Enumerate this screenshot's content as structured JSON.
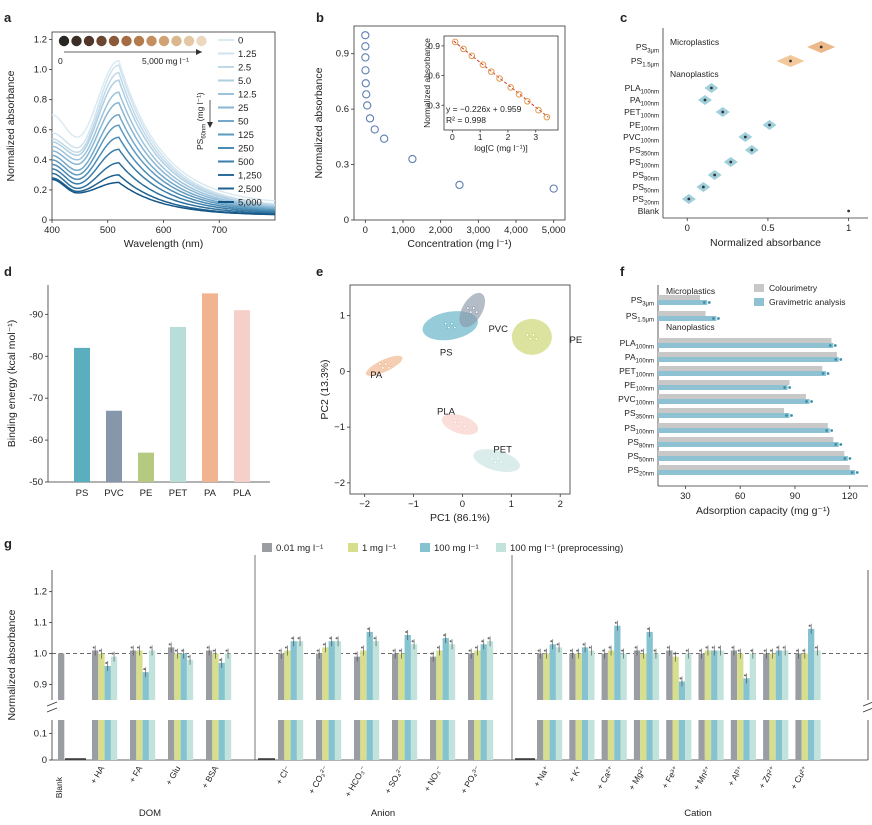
{
  "panels": {
    "a": "a",
    "b": "b",
    "c": "c",
    "d": "d",
    "e": "e",
    "f": "f",
    "g": "g"
  },
  "chart_data": [
    {
      "id": "a",
      "type": "line",
      "xlabel": "Wavelength (nm)",
      "ylabel": "Normalized absorbance",
      "xlim": [
        400,
        800
      ],
      "ylim": [
        0,
        1.25
      ],
      "xticks": [
        400,
        500,
        600,
        700
      ],
      "yticks": [
        0,
        0.2,
        0.4,
        0.6,
        0.8,
        1.0,
        1.2
      ],
      "inset_label_left": "0",
      "inset_label_right": "5,000 mg l⁻¹",
      "legend_axis_label": "PS60nm (mg l⁻¹)",
      "legend_ps": "PS",
      "legend_sub": "60nm",
      "legend_unit": "(mg l⁻¹)",
      "series": [
        {
          "name": "0",
          "peak": 1.06,
          "trough": 0.55,
          "high": 0.7,
          "low": 0.1
        },
        {
          "name": "1.25",
          "peak": 1.03,
          "trough": 0.48,
          "high": 0.58,
          "low": 0.08
        },
        {
          "name": "2.5",
          "peak": 0.98,
          "trough": 0.45,
          "high": 0.54,
          "low": 0.075
        },
        {
          "name": "5.0",
          "peak": 0.93,
          "trough": 0.43,
          "high": 0.52,
          "low": 0.07
        },
        {
          "name": "12.5",
          "peak": 0.85,
          "trough": 0.4,
          "high": 0.49,
          "low": 0.065
        },
        {
          "name": "25",
          "peak": 0.78,
          "trough": 0.37,
          "high": 0.46,
          "low": 0.06
        },
        {
          "name": "50",
          "peak": 0.7,
          "trough": 0.33,
          "high": 0.43,
          "low": 0.055
        },
        {
          "name": "125",
          "peak": 0.63,
          "trough": 0.3,
          "high": 0.4,
          "low": 0.05
        },
        {
          "name": "250",
          "peak": 0.55,
          "trough": 0.27,
          "high": 0.37,
          "low": 0.045
        },
        {
          "name": "500",
          "peak": 0.47,
          "trough": 0.24,
          "high": 0.34,
          "low": 0.04
        },
        {
          "name": "1,250",
          "peak": 0.38,
          "trough": 0.21,
          "high": 0.31,
          "low": 0.035
        },
        {
          "name": "2,500",
          "peak": 0.3,
          "trough": 0.19,
          "high": 0.28,
          "low": 0.03
        },
        {
          "name": "5,000",
          "peak": 0.25,
          "trough": 0.18,
          "high": 0.27,
          "low": 0.03
        }
      ],
      "series_colors": [
        "#dbeaf2",
        "#cfe3ee",
        "#c0d9e9",
        "#afcfe3",
        "#9cc3dc",
        "#88b6d3",
        "#73a8ca",
        "#5d9abf",
        "#4a8bb3",
        "#3a7da8",
        "#2c6f9c",
        "#1f6291",
        "#155686"
      ],
      "swatch_colors": [
        "#2a2622",
        "#3b2e26",
        "#51372a",
        "#6b4630",
        "#8a5a39",
        "#a46c42",
        "#b47c4c",
        "#c48f5e",
        "#d0a274",
        "#dbb78d",
        "#e4c8a6",
        "#ecd8bf"
      ]
    },
    {
      "id": "b",
      "type": "scatter",
      "xlabel": "Concentration (mg l⁻¹)",
      "ylabel": "Normalized absorbance",
      "xlim": [
        -300,
        5300
      ],
      "ylim": [
        0,
        1.05
      ],
      "xticks": [
        0,
        1000,
        2000,
        3000,
        4000,
        5000
      ],
      "yticks": [
        0,
        0.3,
        0.6,
        0.9
      ],
      "x": [
        0,
        1.25,
        2.5,
        5,
        12.5,
        25,
        50,
        125,
        250,
        500,
        1250,
        2500,
        5000
      ],
      "y": [
        1.0,
        0.94,
        0.88,
        0.81,
        0.74,
        0.68,
        0.62,
        0.55,
        0.49,
        0.44,
        0.33,
        0.19,
        0.17
      ],
      "inset": {
        "xlabel": "log[C (mg l⁻¹)]",
        "ylabel": "Normalized absorbance",
        "xlim": [
          -0.3,
          3.8
        ],
        "ylim": [
          0.05,
          1.0
        ],
        "xticks": [
          0,
          1,
          2,
          3
        ],
        "yticks": [
          0.3,
          0.6,
          0.9
        ],
        "equation": "y = −0.226x + 0.959",
        "r2": "R² = 0.998",
        "x": [
          0.1,
          0.4,
          0.7,
          1.1,
          1.4,
          1.7,
          2.1,
          2.4,
          2.7,
          3.1,
          3.4
        ],
        "y": [
          0.94,
          0.87,
          0.8,
          0.71,
          0.64,
          0.57,
          0.48,
          0.41,
          0.34,
          0.25,
          0.18
        ]
      }
    },
    {
      "id": "c",
      "type": "scatter",
      "xlabel": "Normalized absorbance",
      "xlim": [
        -0.15,
        1.12
      ],
      "xticks": [
        0,
        0.5,
        1.0
      ],
      "group_micro": "Microplastics",
      "group_nano": "Nanoplastics",
      "rows": [
        {
          "label": "PS",
          "sub": "3μm",
          "value": 0.83
        },
        {
          "label": "PS",
          "sub": "1.5μm",
          "value": 0.64
        },
        {
          "label": "PLA",
          "sub": "100nm",
          "value": 0.15
        },
        {
          "label": "PA",
          "sub": "100nm",
          "value": 0.11
        },
        {
          "label": "PET",
          "sub": "100nm",
          "value": 0.22
        },
        {
          "label": "PE",
          "sub": "100nm",
          "value": 0.51
        },
        {
          "label": "PVC",
          "sub": "100nm",
          "value": 0.36
        },
        {
          "label": "PS",
          "sub": "350nm",
          "value": 0.4
        },
        {
          "label": "PS",
          "sub": "100nm",
          "value": 0.27
        },
        {
          "label": "PS",
          "sub": "80nm",
          "value": 0.17
        },
        {
          "label": "PS",
          "sub": "50nm",
          "value": 0.1
        },
        {
          "label": "PS",
          "sub": "20nm",
          "value": 0.01
        },
        {
          "label": "Blank",
          "sub": "",
          "value": 1.0
        }
      ]
    },
    {
      "id": "d",
      "type": "bar",
      "ylabel": "Binding energy (kcal mol⁻¹)",
      "ylim": [
        -50,
        -97
      ],
      "yticks": [
        -50,
        -60,
        -70,
        -80,
        -90
      ],
      "categories": [
        "PS",
        "PVC",
        "PE",
        "PET",
        "PA",
        "PLA"
      ],
      "values": [
        -82,
        -67,
        -57,
        -87,
        -95,
        -91
      ],
      "colors": [
        "#5aaebe",
        "#8696ab",
        "#b5c980",
        "#b9ddd9",
        "#f0b590",
        "#f6d0c8"
      ]
    },
    {
      "id": "e",
      "type": "scatter",
      "xlabel": "PC1 (86.1%)",
      "ylabel": "PC2 (13.3%)",
      "xlim": [
        -2.3,
        2.2
      ],
      "ylim": [
        -2.2,
        1.55
      ],
      "xticks": [
        -2,
        -1,
        0,
        1,
        2
      ],
      "yticks": [
        -2,
        -1,
        0,
        1
      ],
      "groups": [
        {
          "name": "PS",
          "cx": -0.25,
          "cy": 0.82,
          "color": "#5eb1c4"
        },
        {
          "name": "PVC",
          "cx": 0.2,
          "cy": 1.1,
          "color": "#8c98ab"
        },
        {
          "name": "PE",
          "cx": 1.42,
          "cy": 0.62,
          "color": "#c7d46a"
        },
        {
          "name": "PA",
          "cx": -1.6,
          "cy": 0.1,
          "color": "#f0b48a"
        },
        {
          "name": "PLA",
          "cx": -0.05,
          "cy": -0.95,
          "color": "#f6cdc4"
        },
        {
          "name": "PET",
          "cx": 0.7,
          "cy": -1.6,
          "color": "#c7e3de"
        }
      ]
    },
    {
      "id": "f",
      "type": "bar",
      "xlabel": "Adsorption capacity (mg g⁻¹)",
      "xlim": [
        15,
        130
      ],
      "xticks": [
        30,
        60,
        90,
        120
      ],
      "group_micro": "Microplastics",
      "group_nano": "Nanoplastics",
      "legend": [
        "Colourimetry",
        "Gravimetric analysis"
      ],
      "colors": [
        "#c8c8c8",
        "#8ec2d3"
      ],
      "rows": [
        {
          "label": "PS",
          "sub": "3μm",
          "colour": 38,
          "grav": 42
        },
        {
          "label": "PS",
          "sub": "1.5μm",
          "colour": 41,
          "grav": 47
        },
        {
          "label": "PLA",
          "sub": "100nm",
          "colour": 110,
          "grav": 111
        },
        {
          "label": "PA",
          "sub": "100nm",
          "colour": 113,
          "grav": 114
        },
        {
          "label": "PET",
          "sub": "100nm",
          "colour": 105,
          "grav": 107
        },
        {
          "label": "PE",
          "sub": "100nm",
          "colour": 87,
          "grav": 86
        },
        {
          "label": "PVC",
          "sub": "100nm",
          "colour": 96,
          "grav": 98
        },
        {
          "label": "PS",
          "sub": "350nm",
          "colour": 84,
          "grav": 87
        },
        {
          "label": "PS",
          "sub": "100nm",
          "colour": 108,
          "grav": 109
        },
        {
          "label": "PS",
          "sub": "80nm",
          "colour": 111,
          "grav": 114
        },
        {
          "label": "PS",
          "sub": "50nm",
          "colour": 117,
          "grav": 119
        },
        {
          "label": "PS",
          "sub": "20nm",
          "colour": 120,
          "grav": 123
        }
      ]
    },
    {
      "id": "g",
      "type": "bar",
      "ylabel": "Normalized absorbance",
      "yticks_upper": [
        0.9,
        1.0,
        1.1,
        1.2
      ],
      "yticks_lower": [
        0,
        0.1
      ],
      "legend": [
        "0.01 mg l⁻¹",
        "1 mg l⁻¹",
        "100 mg l⁻¹",
        "100 mg l⁻¹ (preprocessing)"
      ],
      "colors": [
        "#9a9ea3",
        "#d7df8e",
        "#86c3d0",
        "#c2e3dc"
      ],
      "blank_label": "Blank",
      "blank_value": 1.0,
      "groups": [
        {
          "name": "DOM",
          "items": [
            {
              "label": "+ HA",
              "values": [
                1.01,
                1.0,
                0.96,
                0.99
              ]
            },
            {
              "label": "+ FA",
              "values": [
                1.01,
                1.01,
                0.94,
                1.01
              ]
            },
            {
              "label": "+ Glu",
              "values": [
                1.02,
                1.0,
                1.0,
                0.98
              ]
            },
            {
              "label": "+ BSA",
              "values": [
                1.01,
                1.0,
                0.97,
                1.0
              ]
            }
          ]
        },
        {
          "name": "Anion",
          "items": [
            {
              "label": "+ Cl⁻",
              "values": [
                1.0,
                1.01,
                1.04,
                1.04
              ]
            },
            {
              "label": "+ CO₃²⁻",
              "values": [
                1.0,
                1.02,
                1.04,
                1.04
              ]
            },
            {
              "label": "+ HCO₃⁻",
              "values": [
                0.99,
                1.01,
                1.07,
                1.04
              ]
            },
            {
              "label": "+ SO₄²⁻",
              "values": [
                1.0,
                1.0,
                1.06,
                1.03
              ]
            },
            {
              "label": "+ NO₃⁻",
              "values": [
                0.99,
                1.01,
                1.05,
                1.03
              ]
            },
            {
              "label": "+ PO₄³⁻",
              "values": [
                1.0,
                1.01,
                1.03,
                1.04
              ]
            }
          ]
        },
        {
          "name": "Cation",
          "items": [
            {
              "label": "+ Na⁺",
              "values": [
                1.0,
                1.0,
                1.03,
                1.02
              ]
            },
            {
              "label": "+ K⁺",
              "values": [
                1.0,
                1.0,
                1.02,
                1.01
              ]
            },
            {
              "label": "+ Ca²⁺",
              "values": [
                1.0,
                1.01,
                1.09,
                1.0
              ]
            },
            {
              "label": "+ Mg²⁺",
              "values": [
                1.01,
                1.0,
                1.07,
                1.0
              ]
            },
            {
              "label": "+ Fe³⁺",
              "values": [
                1.01,
                0.99,
                0.91,
                1.0
              ]
            },
            {
              "label": "+ Mn²⁺",
              "values": [
                1.0,
                1.01,
                1.01,
                1.01
              ]
            },
            {
              "label": "+ Al³⁺",
              "values": [
                1.01,
                1.0,
                0.92,
                1.0
              ]
            },
            {
              "label": "+ Zn²⁺",
              "values": [
                1.0,
                1.0,
                1.01,
                1.01
              ]
            },
            {
              "label": "+ Cu²⁺",
              "values": [
                1.0,
                1.0,
                1.08,
                1.01
              ]
            }
          ]
        }
      ]
    }
  ]
}
